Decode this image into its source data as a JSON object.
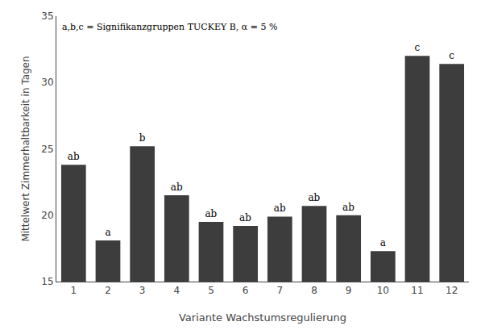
{
  "chart_data": {
    "type": "bar",
    "categories": [
      "1",
      "2",
      "3",
      "4",
      "5",
      "6",
      "7",
      "8",
      "9",
      "10",
      "11",
      "12"
    ],
    "values": [
      23.8,
      18.1,
      25.2,
      21.5,
      19.5,
      19.2,
      19.9,
      20.7,
      20.0,
      17.3,
      32.0,
      31.4
    ],
    "labels": [
      "ab",
      "a",
      "b",
      "ab",
      "ab",
      "ab",
      "ab",
      "ab",
      "ab",
      "a",
      "c",
      "c"
    ],
    "color": "#3d3d3d",
    "xlabel": "Variante Wachstumsregulierung",
    "ylabel": "Mittelwert Zimmerhaltbarkeit in Tagen",
    "annotation": "a,b,c = Signifikanzgruppen TUCKEY B, α = 5 %",
    "ylim": [
      15,
      35
    ],
    "yticks": [
      15,
      20,
      25,
      30,
      35
    ],
    "grid": false
  }
}
